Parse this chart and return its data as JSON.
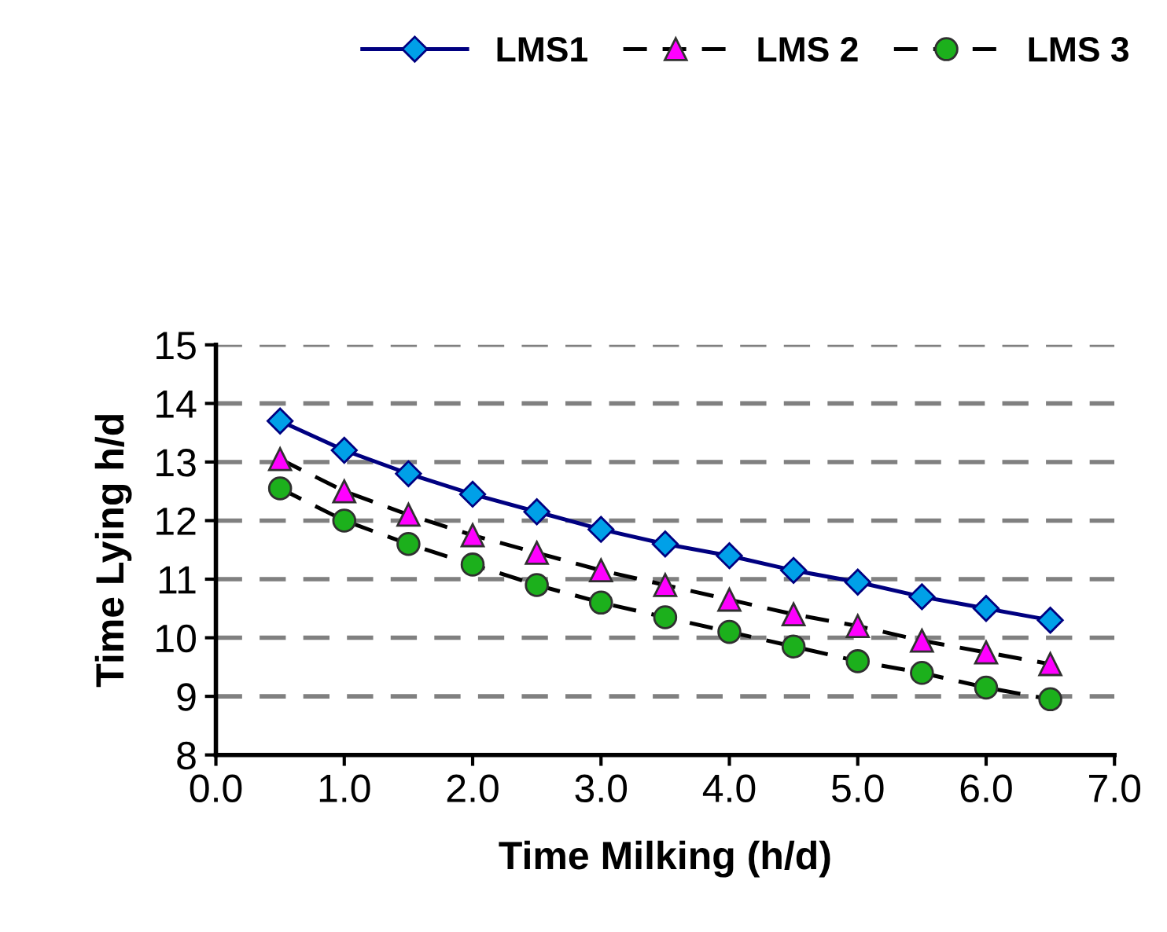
{
  "chart_data": {
    "type": "line",
    "xlabel": "Time Milking (h/d)",
    "ylabel": "Time Lying h/d",
    "x": [
      0.5,
      1.0,
      1.5,
      2.0,
      2.5,
      3.0,
      3.5,
      4.0,
      4.5,
      5.0,
      5.5,
      6.0,
      6.5
    ],
    "series": [
      {
        "name": "LMS1",
        "color": "#00a0e8",
        "marker": "diamond",
        "line_style": "solid",
        "values": [
          13.7,
          13.2,
          12.8,
          12.45,
          12.15,
          11.85,
          11.6,
          11.4,
          11.15,
          10.95,
          10.7,
          10.5,
          10.3
        ]
      },
      {
        "name": "LMS 2",
        "color": "#ff00ff",
        "marker": "triangle",
        "line_style": "dashed",
        "values": [
          13.05,
          12.5,
          12.1,
          11.75,
          11.45,
          11.15,
          10.9,
          10.65,
          10.4,
          10.2,
          9.95,
          9.75,
          9.55
        ]
      },
      {
        "name": "LMS 3",
        "color": "#1cb01c",
        "marker": "circle",
        "line_style": "dashed",
        "values": [
          12.55,
          12.0,
          11.6,
          11.25,
          10.9,
          10.6,
          10.35,
          10.1,
          9.85,
          9.6,
          9.4,
          9.15,
          8.95
        ]
      }
    ],
    "xlim": [
      0.0,
      7.0
    ],
    "xticks": [
      {
        "value": 0,
        "label": "0.0"
      },
      {
        "value": 1,
        "label": "1.0"
      },
      {
        "value": 2,
        "label": "2.0"
      },
      {
        "value": 3,
        "label": "3.0"
      },
      {
        "value": 4,
        "label": "4.0"
      },
      {
        "value": 5,
        "label": "5.0"
      },
      {
        "value": 6,
        "label": "6.0"
      },
      {
        "value": 7,
        "label": "7.0"
      }
    ],
    "ylim": [
      8,
      15
    ],
    "yticks": [
      8,
      9,
      10,
      11,
      12,
      13,
      14,
      15
    ],
    "grid": "y",
    "legend": "top right"
  }
}
